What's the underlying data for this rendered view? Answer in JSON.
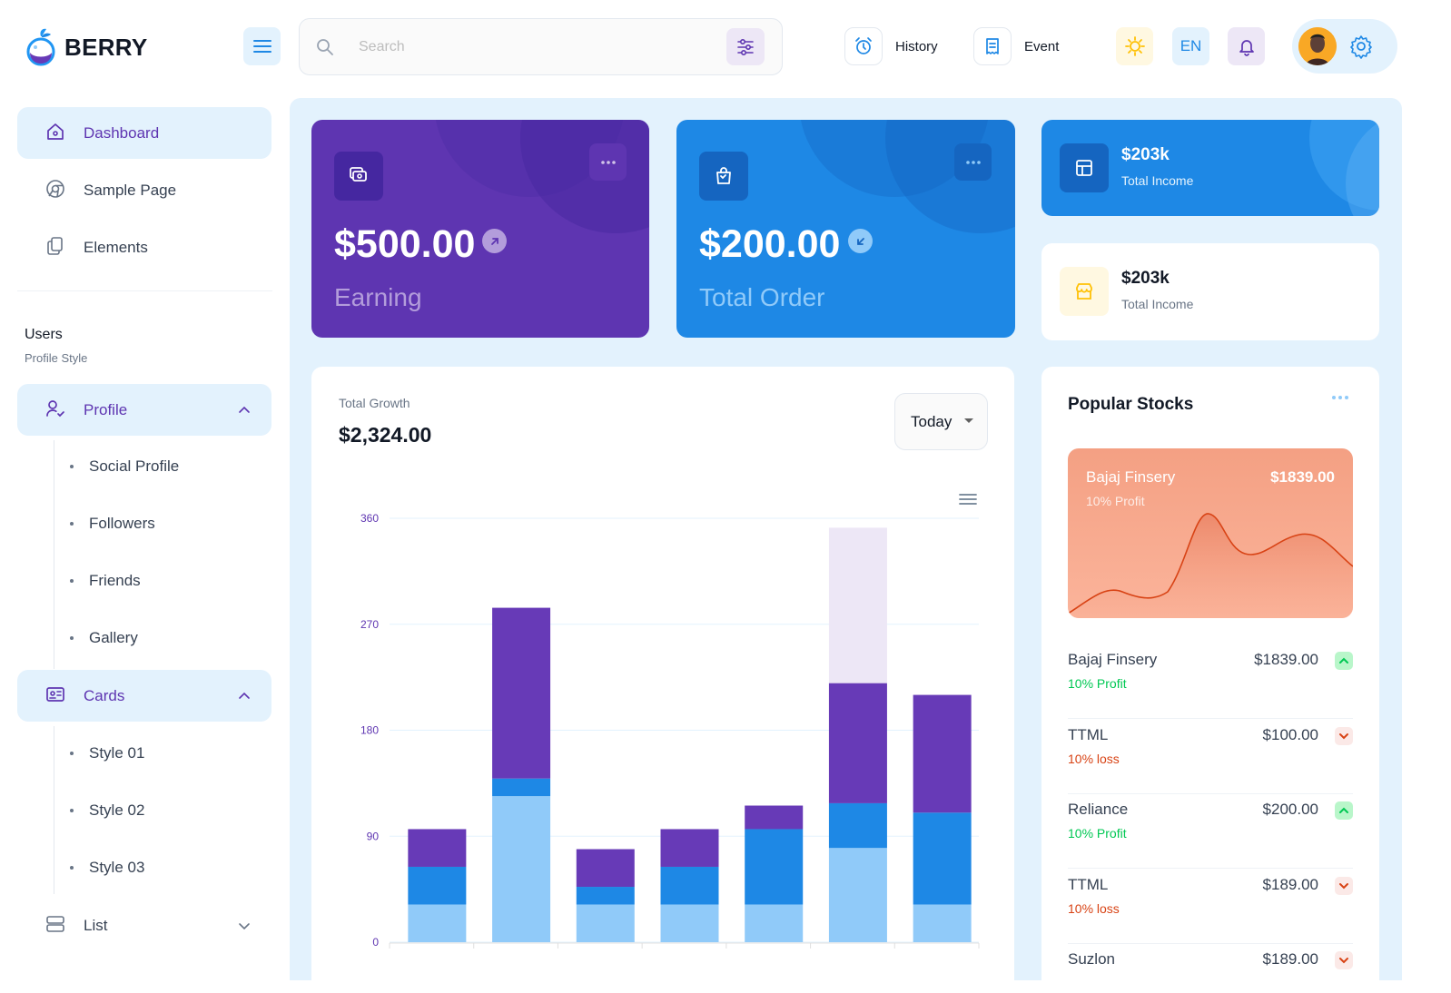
{
  "app": {
    "name": "BERRY"
  },
  "search": {
    "placeholder": "Search"
  },
  "header": {
    "history_label": "History",
    "event_label": "Event",
    "lang_label": "EN"
  },
  "sidebar": {
    "items": [
      {
        "label": "Dashboard",
        "icon": "home-icon"
      },
      {
        "label": "Sample Page",
        "icon": "brand-chrome-icon"
      },
      {
        "label": "Elements",
        "icon": "copy-icon"
      }
    ],
    "group_title": "Users",
    "group_caption": "Profile Style",
    "profile": {
      "label": "Profile",
      "children": [
        "Social Profile",
        "Followers",
        "Friends",
        "Gallery"
      ]
    },
    "cards": {
      "label": "Cards",
      "children": [
        "Style 01",
        "Style 02",
        "Style 03"
      ]
    },
    "list": {
      "label": "List"
    }
  },
  "earning_card": {
    "amount": "$500.00",
    "label": "Earning"
  },
  "order_card": {
    "amount": "$200.00",
    "label": "Total Order"
  },
  "income_cards": [
    {
      "value": "$203k",
      "caption": "Total Income"
    },
    {
      "value": "$203k",
      "caption": "Total Income"
    }
  ],
  "growth": {
    "caption": "Total Growth",
    "value": "$2,324.00",
    "period": "Today"
  },
  "chart_data": {
    "type": "bar",
    "stacked": true,
    "y_ticks": [
      "0",
      "90",
      "180",
      "270",
      "360"
    ],
    "ylim": [
      0,
      360
    ],
    "categories": [
      "",
      "",
      "",
      "",
      "",
      "",
      ""
    ],
    "series": [
      {
        "values": [
          32,
          124,
          32,
          32,
          32,
          80,
          32
        ],
        "color": "#90caf9"
      },
      {
        "values": [
          32,
          15,
          15,
          32,
          64,
          38,
          78
        ],
        "color": "#1e88e5"
      },
      {
        "values": [
          32,
          145,
          32,
          32,
          20,
          102,
          100
        ],
        "color": "#673ab7"
      },
      {
        "values": [
          0,
          0,
          0,
          0,
          0,
          132,
          0
        ],
        "color": "#ede7f6"
      }
    ]
  },
  "stocks": {
    "title": "Popular Stocks",
    "hero": {
      "name": "Bajaj Finsery",
      "price": "$1839.00",
      "caption": "10% Profit"
    },
    "rows": [
      {
        "name": "Bajaj Finsery",
        "price": "$1839.00",
        "status": "10% Profit",
        "trend": "up"
      },
      {
        "name": "TTML",
        "price": "$100.00",
        "status": "10% loss",
        "trend": "down"
      },
      {
        "name": "Reliance",
        "price": "$200.00",
        "status": "10% Profit",
        "trend": "up"
      },
      {
        "name": "TTML",
        "price": "$189.00",
        "status": "10% loss",
        "trend": "down"
      },
      {
        "name": "Suzlon",
        "price": "$189.00",
        "status": "",
        "trend": "down"
      }
    ]
  },
  "colors": {
    "primary": "#1e88e5",
    "secondary": "#5e35b1",
    "success": "#00c853",
    "error": "#d84315"
  }
}
